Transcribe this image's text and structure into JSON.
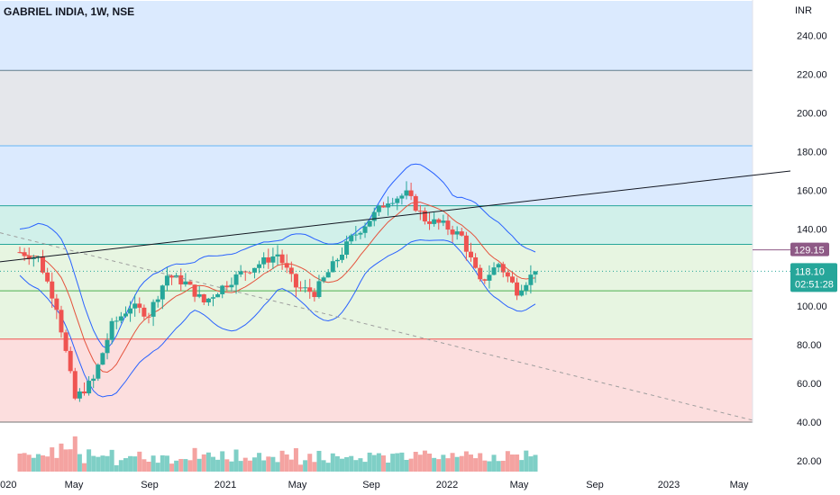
{
  "header": {
    "symbol": "GABRIEL INDIA, 1W, NSE"
  },
  "price_axis": {
    "currency": "INR",
    "ticks": [
      "240.00",
      "220.00",
      "200.00",
      "180.00",
      "160.00",
      "140.00",
      "120.00",
      "100.00",
      "80.00",
      "60.00",
      "40.00",
      "20.00"
    ]
  },
  "time_axis": {
    "ticks": [
      "2020",
      "May",
      "Sep",
      "2021",
      "May",
      "Sep",
      "2022",
      "May",
      "Sep",
      "2023",
      "May"
    ]
  },
  "colors": {
    "up": "#26a69a",
    "down": "#ef5350",
    "bb": "#2962ff",
    "ma": "#e5533d",
    "trend": "#131722",
    "dash": "#9e9e9e"
  },
  "badges": {
    "level": "129.15",
    "last_price": "118.10",
    "countdown": "02:51:28"
  },
  "chart_data": {
    "type": "candlestick",
    "title": "GABRIEL INDIA, 1W, NSE",
    "ylabel": "INR",
    "ylim": [
      12,
      258
    ],
    "x": [
      "2020-01",
      "2020-02",
      "2020-03",
      "2020-04",
      "2020-05",
      "2020-06",
      "2020-07",
      "2020-08",
      "2020-09",
      "2020-10",
      "2020-11",
      "2020-12",
      "2021-01",
      "2021-02",
      "2021-03",
      "2021-04",
      "2021-05",
      "2021-06",
      "2021-07",
      "2021-08",
      "2021-09",
      "2021-10",
      "2021-11",
      "2021-12",
      "2022-01",
      "2022-02",
      "2022-03",
      "2022-04",
      "2022-05"
    ],
    "close_path": [
      128,
      125,
      100,
      52,
      62,
      90,
      100,
      96,
      116,
      112,
      102,
      110,
      117,
      122,
      127,
      110,
      107,
      121,
      135,
      145,
      155,
      158,
      145,
      142,
      136,
      112,
      122,
      108,
      118
    ],
    "zones": [
      {
        "from": 222,
        "to": 258,
        "color": "#dbeafe"
      },
      {
        "from": 183,
        "to": 222,
        "color": "#e5e7eb"
      },
      {
        "from": 152,
        "to": 183,
        "color": "#dbeafe"
      },
      {
        "from": 132,
        "to": 152,
        "color": "#d1f0ea"
      },
      {
        "from": 83,
        "to": 132,
        "color": "#e7f5e1"
      },
      {
        "from": 40,
        "to": 83,
        "color": "#fcdede"
      }
    ],
    "levels": [
      222,
      183,
      152,
      132,
      108,
      83,
      40
    ],
    "last_price": 118.1,
    "marked_level": 129.15
  }
}
